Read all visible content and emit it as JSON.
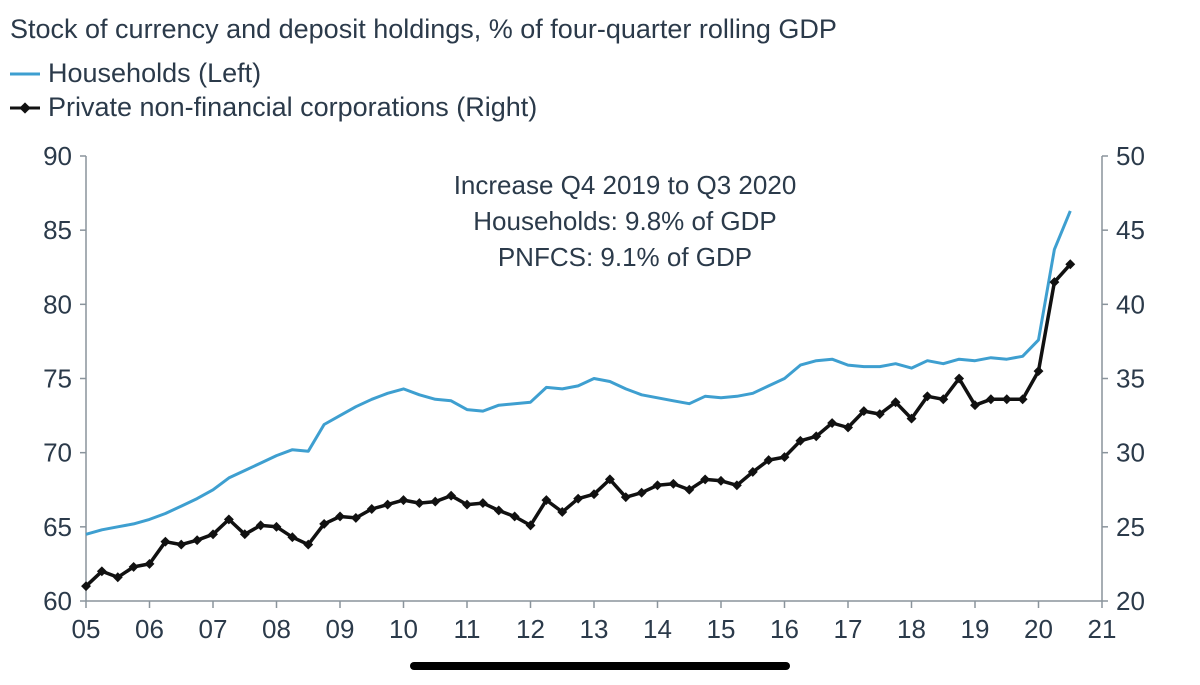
{
  "chart_data": {
    "type": "line",
    "title": "Stock of currency and deposit holdings, % of four-quarter rolling GDP",
    "annotation": [
      "Increase Q4 2019 to Q3 2020",
      "Households: 9.8% of GDP",
      "PNFCS: 9.1% of GDP"
    ],
    "x_ticks": [
      "05",
      "06",
      "07",
      "08",
      "09",
      "10",
      "11",
      "12",
      "13",
      "14",
      "15",
      "16",
      "17",
      "18",
      "19",
      "20",
      "21"
    ],
    "x_range": [
      2005,
      2021
    ],
    "ylim_left": [
      60,
      90
    ],
    "ylim_right": [
      20,
      50
    ],
    "yticks_left": [
      "90",
      "85",
      "80",
      "75",
      "70",
      "65",
      "60"
    ],
    "yticks_right": [
      "50",
      "45",
      "40",
      "35",
      "30",
      "25",
      "20"
    ],
    "series": [
      {
        "name": "Households (Left)",
        "axis": "left",
        "color": "#3e9fd0",
        "x": [
          2005.0,
          2005.25,
          2005.5,
          2005.75,
          2006.0,
          2006.25,
          2006.5,
          2006.75,
          2007.0,
          2007.25,
          2007.5,
          2007.75,
          2008.0,
          2008.25,
          2008.5,
          2008.75,
          2009.0,
          2009.25,
          2009.5,
          2009.75,
          2010.0,
          2010.25,
          2010.5,
          2010.75,
          2011.0,
          2011.25,
          2011.5,
          2011.75,
          2012.0,
          2012.25,
          2012.5,
          2012.75,
          2013.0,
          2013.25,
          2013.5,
          2013.75,
          2014.0,
          2014.25,
          2014.5,
          2014.75,
          2015.0,
          2015.25,
          2015.5,
          2015.75,
          2016.0,
          2016.25,
          2016.5,
          2016.75,
          2017.0,
          2017.25,
          2017.5,
          2017.75,
          2018.0,
          2018.25,
          2018.5,
          2018.75,
          2019.0,
          2019.25,
          2019.5,
          2019.75,
          2020.0,
          2020.25,
          2020.5
        ],
        "values": [
          64.5,
          64.8,
          65.0,
          65.2,
          65.5,
          65.9,
          66.4,
          66.9,
          67.5,
          68.3,
          68.8,
          69.3,
          69.8,
          70.2,
          70.1,
          71.9,
          72.5,
          73.1,
          73.6,
          74.0,
          74.3,
          73.9,
          73.6,
          73.5,
          72.9,
          72.8,
          73.2,
          73.3,
          73.4,
          74.4,
          74.3,
          74.5,
          75.0,
          74.8,
          74.3,
          73.9,
          73.7,
          73.5,
          73.3,
          73.8,
          73.7,
          73.8,
          74.0,
          74.5,
          75.0,
          75.9,
          76.2,
          76.3,
          75.9,
          75.8,
          75.8,
          76.0,
          75.7,
          76.2,
          76.0,
          76.3,
          76.2,
          76.4,
          76.3,
          76.5,
          77.6,
          83.7,
          86.3
        ]
      },
      {
        "name": "Private non-financial corporations (Right)",
        "axis": "right",
        "color": "#111111",
        "x": [
          2005.0,
          2005.25,
          2005.5,
          2005.75,
          2006.0,
          2006.25,
          2006.5,
          2006.75,
          2007.0,
          2007.25,
          2007.5,
          2007.75,
          2008.0,
          2008.25,
          2008.5,
          2008.75,
          2009.0,
          2009.25,
          2009.5,
          2009.75,
          2010.0,
          2010.25,
          2010.5,
          2010.75,
          2011.0,
          2011.25,
          2011.5,
          2011.75,
          2012.0,
          2012.25,
          2012.5,
          2012.75,
          2013.0,
          2013.25,
          2013.5,
          2013.75,
          2014.0,
          2014.25,
          2014.5,
          2014.75,
          2015.0,
          2015.25,
          2015.5,
          2015.75,
          2016.0,
          2016.25,
          2016.5,
          2016.75,
          2017.0,
          2017.25,
          2017.5,
          2017.75,
          2018.0,
          2018.25,
          2018.5,
          2018.75,
          2019.0,
          2019.25,
          2019.5,
          2019.75,
          2020.0,
          2020.25,
          2020.5
        ],
        "values": [
          21.0,
          22.0,
          21.6,
          22.3,
          22.5,
          24.0,
          23.8,
          24.1,
          24.5,
          25.5,
          24.5,
          25.1,
          25.0,
          24.3,
          23.8,
          25.2,
          25.7,
          25.6,
          26.2,
          26.5,
          26.8,
          26.6,
          26.7,
          27.1,
          26.5,
          26.6,
          26.1,
          25.7,
          25.1,
          26.8,
          26.0,
          26.9,
          27.2,
          28.2,
          27.0,
          27.3,
          27.8,
          27.9,
          27.5,
          28.2,
          28.1,
          27.8,
          28.7,
          29.5,
          29.7,
          30.8,
          31.1,
          32.0,
          31.7,
          32.8,
          32.6,
          33.4,
          32.3,
          33.8,
          33.6,
          35.0,
          33.2,
          33.6,
          33.6,
          33.6,
          35.5,
          41.5,
          42.7
        ]
      }
    ]
  }
}
